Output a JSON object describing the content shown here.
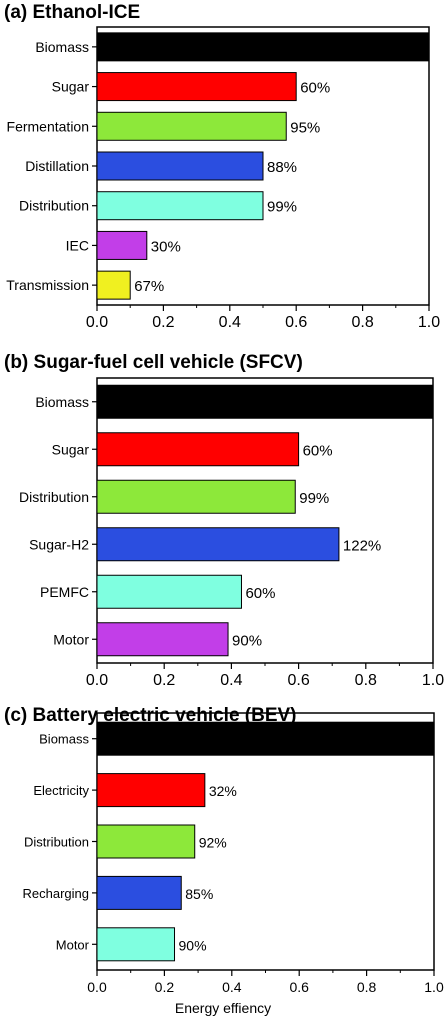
{
  "colors": {
    "black": "#000000",
    "red": "#ff0000",
    "green": "#8de83a",
    "blue": "#2b4ee0",
    "cyan": "#7fffe0",
    "purple": "#c23ee8",
    "yellow": "#f0f020"
  },
  "chart_data": [
    {
      "type": "bar",
      "orientation": "horizontal",
      "title": "(a) Ethanol-ICE",
      "categories": [
        "Biomass",
        "Sugar",
        "Fermentation",
        "Distillation",
        "Distribution",
        "IEC",
        "Transmission"
      ],
      "values": [
        1.0,
        0.6,
        0.57,
        0.5,
        0.5,
        0.15,
        0.1
      ],
      "bar_labels": [
        "",
        "60%",
        "95%",
        "88%",
        "99%",
        "30%",
        "67%"
      ],
      "bar_colors": [
        "#000000",
        "#ff0000",
        "#8de83a",
        "#2b4ee0",
        "#7fffe0",
        "#c23ee8",
        "#f0f020"
      ],
      "xlim": [
        0,
        1.0
      ],
      "xticks": [
        "0.0",
        "0.2",
        "0.4",
        "0.6",
        "0.8",
        "1.0"
      ],
      "xlabel": "",
      "grid": false
    },
    {
      "type": "bar",
      "orientation": "horizontal",
      "title": "(b) Sugar-fuel cell vehicle (SFCV)",
      "categories": [
        "Biomass",
        "Sugar",
        "Distribution",
        "Sugar-H2",
        "PEMFC",
        "Motor"
      ],
      "values": [
        1.0,
        0.6,
        0.59,
        0.72,
        0.43,
        0.39
      ],
      "bar_labels": [
        "",
        "60%",
        "99%",
        "122%",
        "60%",
        "90%"
      ],
      "bar_colors": [
        "#000000",
        "#ff0000",
        "#8de83a",
        "#2b4ee0",
        "#7fffe0",
        "#c23ee8"
      ],
      "xlim": [
        0,
        1.0
      ],
      "xticks": [
        "0.0",
        "0.2",
        "0.4",
        "0.6",
        "0.8",
        "1.0"
      ],
      "xlabel": "",
      "grid": false
    },
    {
      "type": "bar",
      "orientation": "horizontal",
      "title": "(c) Battery electric vehicle (BEV)",
      "categories": [
        "Biomass",
        "Electricity",
        "Distribution",
        "Recharging",
        "Motor"
      ],
      "values": [
        1.0,
        0.32,
        0.29,
        0.25,
        0.23
      ],
      "bar_labels": [
        "",
        "32%",
        "92%",
        "85%",
        "90%"
      ],
      "bar_colors": [
        "#000000",
        "#ff0000",
        "#8de83a",
        "#2b4ee0",
        "#7fffe0"
      ],
      "xlim": [
        0,
        1.0
      ],
      "xticks": [
        "0.0",
        "0.2",
        "0.4",
        "0.6",
        "0.8",
        "1.0"
      ],
      "xlabel": "Energy effiency",
      "grid": false
    }
  ]
}
